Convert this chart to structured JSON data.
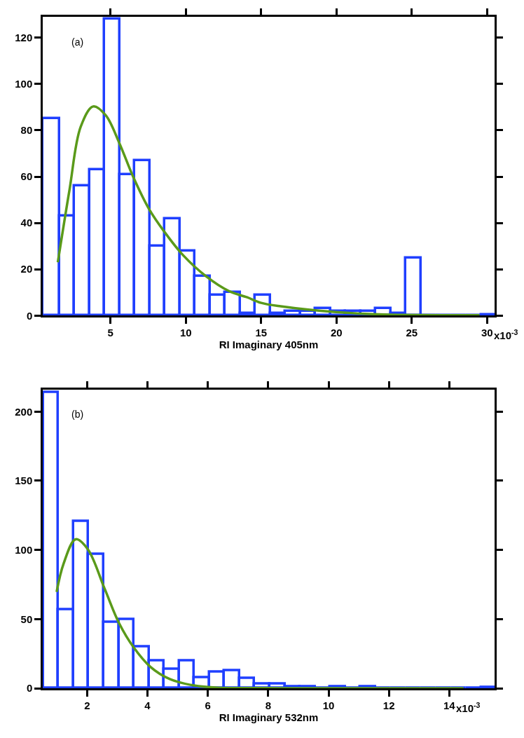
{
  "chart_data": [
    {
      "type": "histogram",
      "xlabel": "RI Imaginary 405nm",
      "annotations": [
        "(a)",
        "x10$^{-3}$"
      ],
      "xlim": [
        0.5,
        30.5
      ],
      "ylim": [
        0,
        129
      ],
      "xticks": [
        5,
        10,
        15,
        20,
        25,
        30
      ],
      "yticks": [
        0,
        20,
        40,
        60,
        80,
        100,
        120
      ],
      "series": [
        {
          "color": "#1f3fff",
          "bins": [
            0.5,
            1.6,
            2.6,
            3.6,
            4.6,
            5.6,
            6.6,
            7.6,
            8.6,
            9.6,
            10.6,
            11.6,
            12.6,
            13.6,
            14.6,
            15.6,
            16.6,
            17.6,
            18.6,
            19.6,
            20.6,
            21.6,
            22.6,
            23.6,
            24.6,
            25.6,
            26.6,
            27.6,
            28.6,
            29.6,
            30.5
          ],
          "values": [
            85,
            43,
            56,
            63,
            128,
            61,
            67,
            30,
            42,
            28,
            17,
            9,
            10,
            1,
            9,
            1,
            2,
            2,
            3,
            2,
            2,
            2,
            3,
            1,
            25,
            0,
            0,
            0,
            0,
            0.5
          ]
        },
        {
          "type": "line",
          "color": "#5a9a1a",
          "x": [
            1.5,
            2.27,
            3.02,
            3.85,
            4.68,
            5.59,
            6.5,
            7.56,
            8.6,
            9.83,
            11.34,
            12.86,
            14.07,
            15,
            16.3,
            19.97,
            23.15,
            29.5
          ],
          "values": [
            23,
            54,
            81.5,
            90.3,
            86.5,
            74.4,
            60,
            46,
            36,
            26,
            17,
            10.6,
            7.9,
            5.5,
            4,
            1.5,
            0.5,
            0.2
          ]
        }
      ]
    },
    {
      "type": "histogram",
      "xlabel": "RI Imaginary 532nm",
      "annotations": [
        "(b)",
        "x10$^{-3}$"
      ],
      "xlim": [
        0.53,
        15.5
      ],
      "ylim": [
        0,
        216
      ],
      "xticks": [
        2,
        4,
        6,
        8,
        10,
        12,
        14
      ],
      "yticks": [
        0,
        50,
        100,
        150,
        200
      ],
      "series": [
        {
          "color": "#1f3fff",
          "bins": [
            0.55,
            1.05,
            1.55,
            2.05,
            2.55,
            3.05,
            3.55,
            4.05,
            4.55,
            5.05,
            5.55,
            6.05,
            6.55,
            7.05,
            7.55,
            8.05,
            8.55,
            9.05,
            9.55,
            10.05,
            10.55,
            11.05,
            11.55,
            12.05,
            12.55,
            13.05,
            13.55,
            14.05,
            14.55,
            15.05,
            15.5
          ],
          "values": [
            214,
            57,
            121,
            97,
            48,
            50,
            30,
            20,
            14,
            20,
            8,
            12,
            13,
            7,
            3,
            3,
            1,
            1,
            0,
            1,
            0,
            1,
            0,
            0,
            0,
            0,
            0,
            0,
            0,
            0.5
          ]
        },
        {
          "type": "line",
          "color": "#5a9a1a",
          "x": [
            0.99,
            1.22,
            1.62,
            2.02,
            2.58,
            3.06,
            3.54,
            4.1,
            4.74,
            5.54,
            6.34,
            8,
            10,
            14.47
          ],
          "values": [
            69.6,
            90,
            107.7,
            100.6,
            72,
            47,
            29.6,
            15.4,
            6.6,
            2,
            0.4,
            0.1,
            0,
            0
          ]
        }
      ]
    }
  ]
}
